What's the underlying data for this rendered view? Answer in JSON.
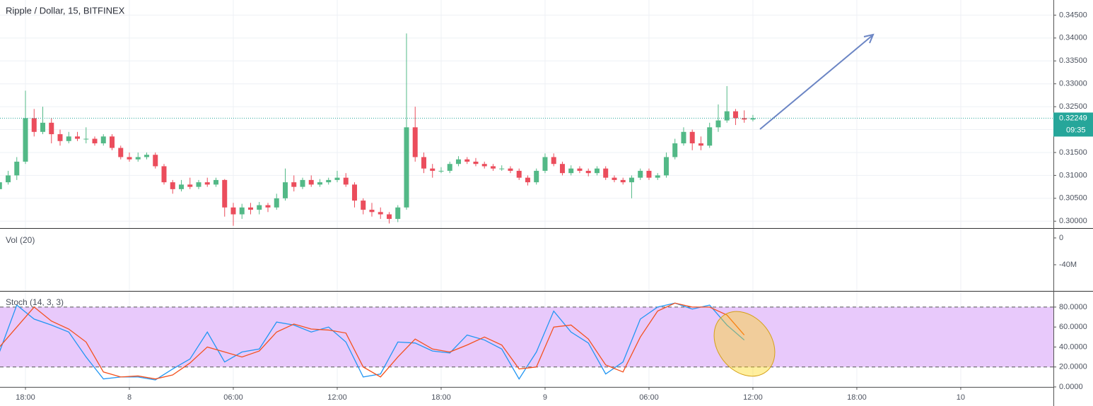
{
  "chart_data": [
    {
      "type": "candlestick",
      "title": "Ripple / Dollar, 15, BITFINEX",
      "up_color": "#53b987",
      "down_color": "#eb4d5c",
      "x": [
        -1.5,
        -1,
        -0.5,
        0,
        0.5,
        1,
        1.5,
        2,
        2.5,
        3,
        3.5,
        4,
        4.5,
        5,
        5.5,
        6,
        6.5,
        7,
        7.5,
        8,
        8.5,
        9,
        9.5,
        10,
        10.5,
        11,
        11.5,
        12,
        12.5,
        13,
        13.5,
        14,
        14.5,
        15,
        15.5,
        16,
        16.5,
        17,
        17.5,
        18,
        18.5,
        19,
        19.5,
        20,
        20.5,
        21,
        21.5,
        22,
        22.5,
        23,
        23.5,
        24,
        24.5,
        25,
        25.5,
        26,
        26.5,
        27,
        27.5,
        28,
        28.5,
        29,
        29.5,
        30,
        30.5,
        31,
        31.5,
        32,
        32.5,
        33,
        33.5,
        34,
        34.5,
        35,
        35.5,
        36,
        36.5,
        37,
        37.5,
        38,
        38.5,
        39,
        39.5,
        40,
        40.5,
        41,
        41.5,
        42
      ],
      "candles": [
        [
          0.307,
          0.309,
          0.3055,
          0.3085
        ],
        [
          0.3085,
          0.311,
          0.308,
          0.31
        ],
        [
          0.31,
          0.314,
          0.309,
          0.313
        ],
        [
          0.313,
          0.3285,
          0.3125,
          0.3225
        ],
        [
          0.3225,
          0.3245,
          0.3185,
          0.3195
        ],
        [
          0.3195,
          0.325,
          0.319,
          0.3215
        ],
        [
          0.3215,
          0.3225,
          0.317,
          0.319
        ],
        [
          0.319,
          0.32,
          0.3165,
          0.3175
        ],
        [
          0.3175,
          0.3195,
          0.317,
          0.3185
        ],
        [
          0.3185,
          0.3195,
          0.3175,
          0.318
        ],
        [
          0.318,
          0.3205,
          0.317,
          0.318
        ],
        [
          0.318,
          0.3185,
          0.3165,
          0.317
        ],
        [
          0.317,
          0.319,
          0.3165,
          0.3185
        ],
        [
          0.3185,
          0.319,
          0.3155,
          0.316
        ],
        [
          0.316,
          0.3165,
          0.3135,
          0.314
        ],
        [
          0.314,
          0.315,
          0.313,
          0.3135
        ],
        [
          0.3135,
          0.315,
          0.313,
          0.314
        ],
        [
          0.314,
          0.315,
          0.3135,
          0.3145
        ],
        [
          0.3145,
          0.315,
          0.3115,
          0.312
        ],
        [
          0.312,
          0.3125,
          0.308,
          0.3085
        ],
        [
          0.3085,
          0.309,
          0.306,
          0.307
        ],
        [
          0.307,
          0.309,
          0.3065,
          0.308
        ],
        [
          0.308,
          0.3095,
          0.307,
          0.3075
        ],
        [
          0.3075,
          0.309,
          0.307,
          0.3085
        ],
        [
          0.3085,
          0.3095,
          0.3075,
          0.308
        ],
        [
          0.308,
          0.3095,
          0.3075,
          0.309
        ],
        [
          0.309,
          0.3092,
          0.301,
          0.303
        ],
        [
          0.303,
          0.304,
          0.299,
          0.3015
        ],
        [
          0.3015,
          0.3038,
          0.3005,
          0.303
        ],
        [
          0.303,
          0.304,
          0.3015,
          0.3025
        ],
        [
          0.3025,
          0.3042,
          0.3015,
          0.3035
        ],
        [
          0.3035,
          0.304,
          0.302,
          0.303
        ],
        [
          0.303,
          0.306,
          0.3025,
          0.305
        ],
        [
          0.305,
          0.3115,
          0.3045,
          0.3085
        ],
        [
          0.3085,
          0.31,
          0.3065,
          0.3075
        ],
        [
          0.3075,
          0.3095,
          0.307,
          0.309
        ],
        [
          0.309,
          0.31,
          0.3075,
          0.308
        ],
        [
          0.308,
          0.3092,
          0.3075,
          0.3085
        ],
        [
          0.3085,
          0.3095,
          0.308,
          0.309
        ],
        [
          0.309,
          0.311,
          0.3085,
          0.3095
        ],
        [
          0.3095,
          0.3105,
          0.3075,
          0.308
        ],
        [
          0.308,
          0.3085,
          0.303,
          0.3045
        ],
        [
          0.3045,
          0.305,
          0.3015,
          0.3025
        ],
        [
          0.3025,
          0.304,
          0.301,
          0.302
        ],
        [
          0.302,
          0.303,
          0.3005,
          0.3015
        ],
        [
          0.3015,
          0.302,
          0.2995,
          0.3005
        ],
        [
          0.3005,
          0.3035,
          0.2998,
          0.303
        ],
        [
          0.303,
          0.341,
          0.3025,
          0.3205
        ],
        [
          0.3205,
          0.325,
          0.313,
          0.314
        ],
        [
          0.314,
          0.315,
          0.3105,
          0.3115
        ],
        [
          0.3115,
          0.3125,
          0.3095,
          0.311
        ],
        [
          0.311,
          0.3118,
          0.3105,
          0.311
        ],
        [
          0.311,
          0.313,
          0.3105,
          0.3125
        ],
        [
          0.3125,
          0.3142,
          0.312,
          0.3135
        ],
        [
          0.3135,
          0.314,
          0.3125,
          0.313
        ],
        [
          0.313,
          0.3138,
          0.312,
          0.3125
        ],
        [
          0.3125,
          0.313,
          0.3115,
          0.312
        ],
        [
          0.312,
          0.3125,
          0.311,
          0.3115
        ],
        [
          0.3115,
          0.3122,
          0.311,
          0.3115
        ],
        [
          0.3115,
          0.312,
          0.3105,
          0.311
        ],
        [
          0.311,
          0.3115,
          0.309,
          0.3095
        ],
        [
          0.3095,
          0.31,
          0.3078,
          0.3085
        ],
        [
          0.3085,
          0.3115,
          0.308,
          0.311
        ],
        [
          0.311,
          0.3148,
          0.3105,
          0.314
        ],
        [
          0.314,
          0.3148,
          0.312,
          0.3125
        ],
        [
          0.3125,
          0.313,
          0.31,
          0.3105
        ],
        [
          0.3105,
          0.3122,
          0.31,
          0.3115
        ],
        [
          0.3115,
          0.312,
          0.3105,
          0.311
        ],
        [
          0.311,
          0.3115,
          0.3098,
          0.3105
        ],
        [
          0.3105,
          0.312,
          0.31,
          0.3115
        ],
        [
          0.3115,
          0.312,
          0.309,
          0.3095
        ],
        [
          0.3095,
          0.31,
          0.3085,
          0.309
        ],
        [
          0.309,
          0.3095,
          0.308,
          0.3085
        ],
        [
          0.3085,
          0.31,
          0.305,
          0.3095
        ],
        [
          0.3095,
          0.3115,
          0.309,
          0.311
        ],
        [
          0.311,
          0.3115,
          0.309,
          0.3095
        ],
        [
          0.3095,
          0.3105,
          0.309,
          0.31
        ],
        [
          0.31,
          0.315,
          0.3095,
          0.314
        ],
        [
          0.314,
          0.318,
          0.3135,
          0.317
        ],
        [
          0.317,
          0.3205,
          0.3165,
          0.3195
        ],
        [
          0.3195,
          0.32,
          0.3155,
          0.317
        ],
        [
          0.317,
          0.3185,
          0.3155,
          0.3165
        ],
        [
          0.3165,
          0.3215,
          0.316,
          0.3205
        ],
        [
          0.3205,
          0.3255,
          0.3195,
          0.322
        ],
        [
          0.322,
          0.3295,
          0.3215,
          0.324
        ],
        [
          0.324,
          0.3245,
          0.321,
          0.3225
        ],
        [
          0.3225,
          0.3242,
          0.3215,
          0.3222
        ],
        [
          0.3222,
          0.3232,
          0.3218,
          0.32249
        ]
      ],
      "last_price": 0.32249,
      "countdown": "09:35",
      "last_color": "#26a69a",
      "xlim": [
        -1.47,
        59.35
      ],
      "ylim": [
        0.2985,
        0.3483
      ],
      "yticks": [
        {
          "value": 0.3,
          "label": "0.30000"
        },
        {
          "value": 0.305,
          "label": "0.30500"
        },
        {
          "value": 0.31,
          "label": "0.31000"
        },
        {
          "value": 0.315,
          "label": "0.31500"
        },
        {
          "value": 0.32,
          "label": "0.32000"
        },
        {
          "value": 0.325,
          "label": "0.32500"
        },
        {
          "value": 0.33,
          "label": "0.33000"
        },
        {
          "value": 0.335,
          "label": "0.33500"
        },
        {
          "value": 0.34,
          "label": "0.34000"
        },
        {
          "value": 0.345,
          "label": "0.34500"
        }
      ]
    },
    {
      "type": "volume",
      "title": "Vol (20)",
      "xlim": [
        -1.47,
        59.35
      ],
      "ylim": [
        -79000000,
        14700000
      ],
      "yticks": [
        0,
        {
          "value": -40000000,
          "label": "-40M"
        }
      ]
    },
    {
      "type": "line",
      "title": "Stoch (14, 3, 3)",
      "x": [
        -1.5,
        -0.5,
        0.5,
        1.5,
        2.5,
        3.5,
        4.5,
        5.5,
        6.5,
        7.5,
        8.5,
        9.5,
        10.5,
        11.5,
        12.5,
        13.5,
        14.5,
        15.5,
        16.5,
        17.5,
        18.5,
        19.5,
        20.5,
        21.5,
        22.5,
        23.5,
        24.5,
        25.5,
        26.5,
        27.5,
        28.5,
        29.5,
        30.5,
        31.5,
        32.5,
        33.5,
        34.5,
        35.5,
        36.5,
        37.5,
        38.5,
        39.5,
        40.5,
        41.5
      ],
      "series": [
        {
          "color": "#2196f3",
          "values": [
            35,
            82,
            68,
            62,
            55,
            30,
            8,
            10,
            10,
            7,
            18,
            28,
            55,
            25,
            35,
            38,
            65,
            62,
            55,
            60,
            45,
            10,
            13,
            45,
            44,
            36,
            34,
            52,
            47,
            38,
            8,
            35,
            76,
            55,
            44,
            13,
            25,
            68,
            80,
            84,
            78,
            82,
            62,
            47
          ]
        },
        {
          "color": "#f4511e",
          "values": [
            40,
            60,
            80,
            66,
            58,
            45,
            15,
            10,
            11,
            8,
            12,
            24,
            40,
            35,
            30,
            36,
            55,
            63,
            58,
            57,
            54,
            20,
            10,
            30,
            48,
            38,
            35,
            42,
            50,
            42,
            18,
            20,
            60,
            62,
            48,
            22,
            15,
            50,
            76,
            84,
            80,
            80,
            72,
            52
          ]
        }
      ],
      "band": [
        20,
        80
      ],
      "band_color": "#e8c9fb",
      "xlim": [
        -1.47,
        59.35
      ],
      "ylim": [
        0,
        96.2
      ],
      "yticks": [
        {
          "value": 0,
          "label": "0.0000"
        },
        {
          "value": 20,
          "label": "20.0000"
        },
        {
          "value": 40,
          "label": "40.0000"
        },
        {
          "value": 60,
          "label": "60.0000"
        },
        {
          "value": 80,
          "label": "80.0000"
        }
      ],
      "xticks": [
        {
          "value": 0,
          "label": "18:00"
        },
        {
          "value": 6,
          "label": "8"
        },
        {
          "value": 12,
          "label": "06:00"
        },
        {
          "value": 18,
          "label": "12:00"
        },
        {
          "value": 24,
          "label": "18:00"
        },
        {
          "value": 30,
          "label": "9"
        },
        {
          "value": 36,
          "label": "06:00"
        },
        {
          "value": 42,
          "label": "12:00"
        },
        {
          "value": 48,
          "label": "18:00"
        },
        {
          "value": 54,
          "label": "10"
        }
      ]
    }
  ]
}
